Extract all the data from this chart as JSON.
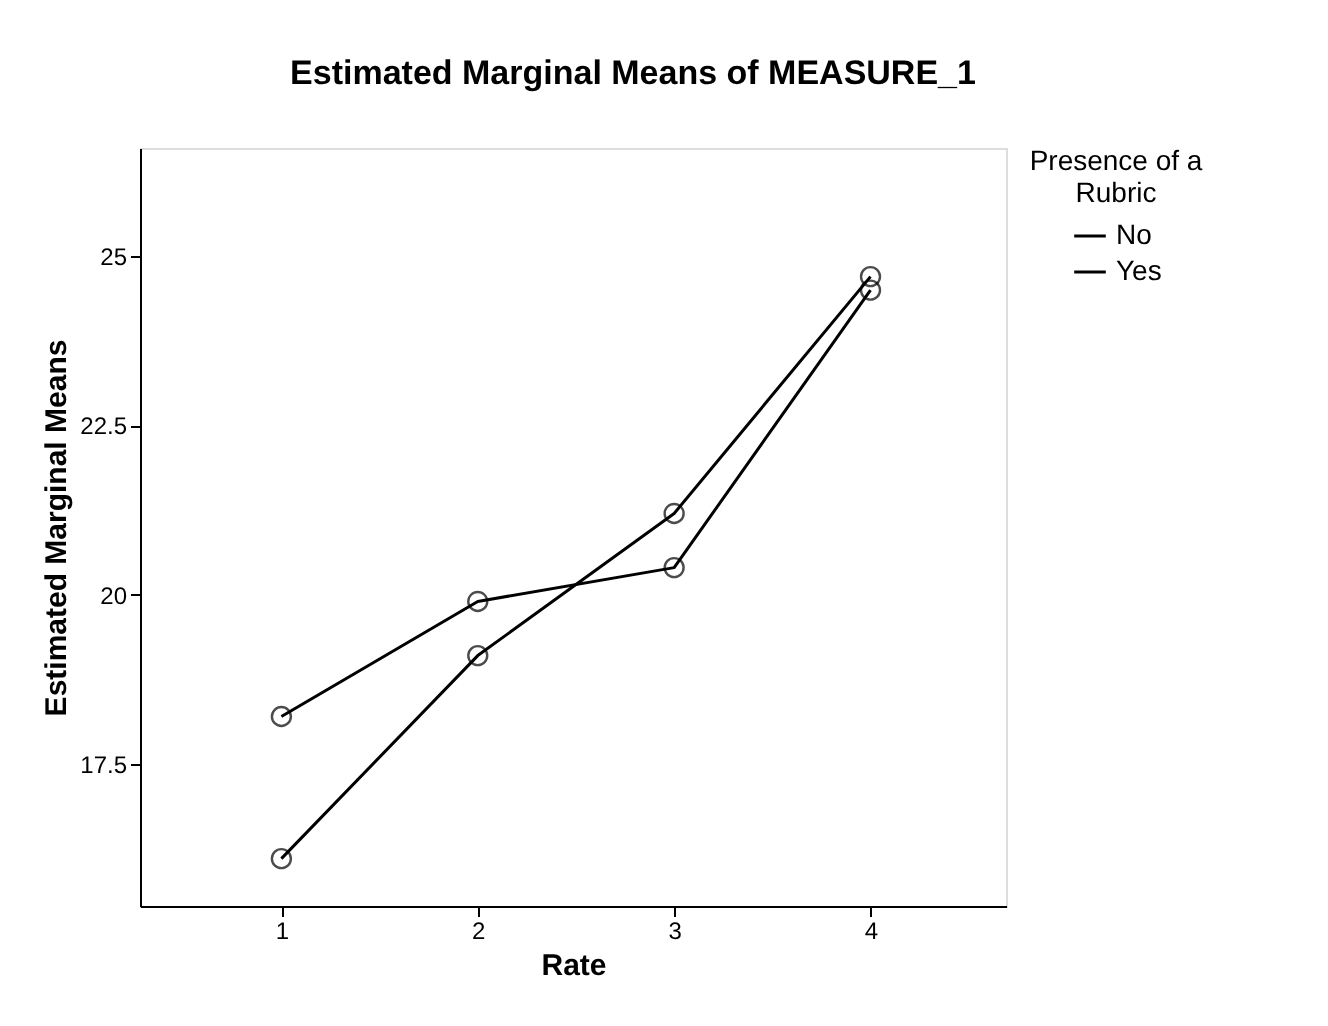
{
  "chart_data": {
    "type": "line",
    "title": "Estimated Marginal Means of MEASURE_1",
    "xlabel": "Rate",
    "ylabel": "Estimated Marginal Means",
    "legend_title": "Presence of a Rubric",
    "categories": [
      "1",
      "2",
      "3",
      "4"
    ],
    "series": [
      {
        "name": "No",
        "color": "#000000",
        "values": [
          18.2,
          19.9,
          20.4,
          24.5
        ]
      },
      {
        "name": "Yes",
        "color": "#000000",
        "values": [
          16.1,
          19.1,
          21.2,
          24.7
        ]
      }
    ],
    "ylim": [
      15.4,
      26.6
    ],
    "yticks": [
      17.5,
      20,
      22.5,
      25
    ],
    "grid": false,
    "legend": "right",
    "marker": "circle",
    "line_style": "solid"
  }
}
